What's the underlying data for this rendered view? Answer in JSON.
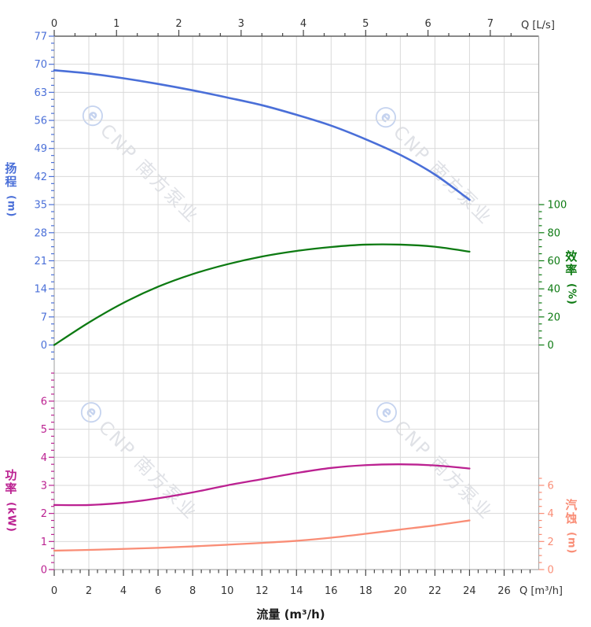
{
  "watermark": {
    "logo_glyph": "ⓔ",
    "text": "CNP 南方泵业"
  },
  "axes": {
    "top": {
      "title": "Q [L/s]",
      "tick_labels": [
        0,
        1,
        2,
        3,
        4,
        5,
        6,
        7
      ],
      "color": "#333333"
    },
    "bottom": {
      "title": "Q [m³/h]",
      "xlabel": "流量 (m³/h)",
      "tick_labels": [
        0,
        2,
        4,
        6,
        8,
        10,
        12,
        14,
        16,
        18,
        20,
        22,
        24,
        26
      ],
      "color": "#333333"
    },
    "head": {
      "title": "扬程",
      "unit": "(m)",
      "tick_labels": [
        77,
        70,
        63,
        56,
        49,
        42,
        35,
        28,
        21,
        14,
        7,
        0
      ],
      "color": "#4a6fd8"
    },
    "efficiency": {
      "title": "效率",
      "unit": "(%)",
      "tick_labels": [
        100,
        80,
        60,
        40,
        20,
        0
      ],
      "color": "#0d7a12"
    },
    "power": {
      "title": "功率",
      "unit": "(kW)",
      "tick_labels": [
        6,
        5,
        4,
        3,
        2,
        1,
        0
      ],
      "color": "#bb2191"
    },
    "npsh": {
      "title": "汽蚀",
      "unit": "(m)",
      "tick_labels": [
        6,
        4,
        2,
        0
      ],
      "color": "#f98d76"
    }
  },
  "chart_data": {
    "type": "line",
    "title": "",
    "xlabel": "流量 (m³/h)",
    "x_axis_top_unit": "L/s",
    "x_axis_bottom_unit": "m³/h",
    "x_range_m3h": [
      0,
      28
    ],
    "x_range_ls": [
      0,
      7
    ],
    "grid": true,
    "x": [
      0,
      2,
      4,
      6,
      8,
      10,
      12,
      14,
      16,
      18,
      20,
      22,
      24
    ],
    "series": [
      {
        "name": "head",
        "label": "扬程",
        "unit": "m",
        "axis": "head",
        "color": "#4a6fd8",
        "values": [
          68.5,
          67.7,
          66.5,
          65.1,
          63.5,
          61.7,
          59.8,
          57.4,
          54.7,
          51.3,
          47.4,
          42.5,
          36.2
        ]
      },
      {
        "name": "efficiency",
        "label": "效率",
        "unit": "%",
        "axis": "efficiency",
        "color": "#0d7a12",
        "values": [
          0,
          16,
          30,
          41.5,
          50.5,
          57.5,
          63,
          67,
          69.8,
          71.5,
          71.5,
          70,
          66.5
        ]
      },
      {
        "name": "power",
        "label": "功率",
        "unit": "kW",
        "axis": "power",
        "color": "#bb2191",
        "values": [
          2.3,
          2.3,
          2.38,
          2.54,
          2.75,
          3.0,
          3.22,
          3.44,
          3.62,
          3.72,
          3.75,
          3.71,
          3.6
        ]
      },
      {
        "name": "npsh",
        "label": "汽蚀",
        "unit": "m",
        "axis": "npsh",
        "color": "#f98d76",
        "values": [
          1.35,
          1.4,
          1.47,
          1.55,
          1.65,
          1.77,
          1.9,
          2.05,
          2.27,
          2.55,
          2.85,
          3.15,
          3.5
        ]
      }
    ],
    "axis_ranges": {
      "head": [
        0,
        77
      ],
      "efficiency": [
        0,
        100
      ],
      "power": [
        0,
        7
      ],
      "npsh": [
        0,
        7
      ]
    }
  }
}
